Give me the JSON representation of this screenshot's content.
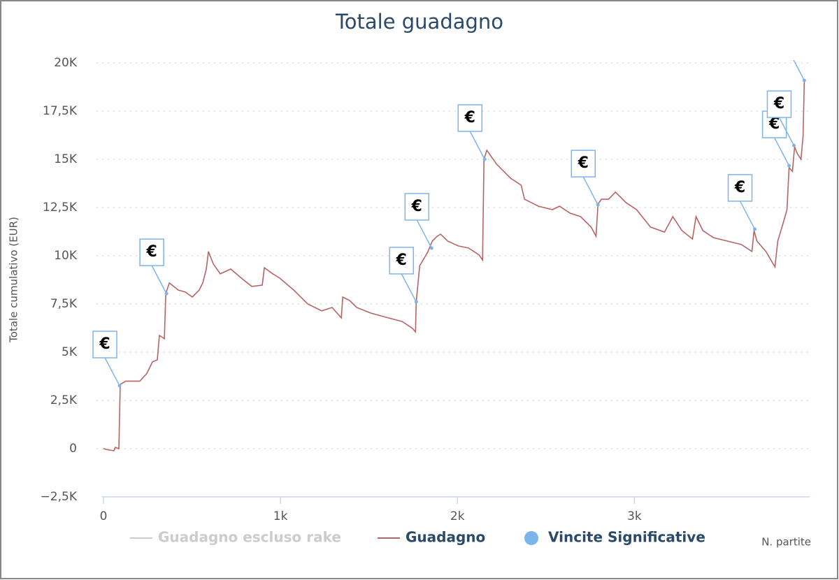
{
  "chart_data": {
    "type": "line",
    "title": "Totale guadagno",
    "xlabel": "N. partite",
    "ylabel": "Totale cumulativo (EUR)",
    "xlim": [
      0,
      3990
    ],
    "ylim": [
      -2500,
      20000
    ],
    "xticks": [
      0,
      {
        "value": 1000,
        "label": "1k"
      },
      {
        "value": 2000,
        "label": "2k"
      },
      {
        "value": 3000,
        "label": "3k"
      }
    ],
    "yticks": [
      {
        "value": -2500,
        "label": "−2,5K"
      },
      0,
      {
        "value": 2500,
        "label": "2,5K"
      },
      {
        "value": 5000,
        "label": "5K"
      },
      {
        "value": 7500,
        "label": "7,5K"
      },
      {
        "value": 10000,
        "label": "10K"
      },
      {
        "value": 12500,
        "label": "12,5K"
      },
      {
        "value": 15000,
        "label": "15K"
      },
      {
        "value": 17500,
        "label": "17,5K"
      },
      {
        "value": 20000,
        "label": "20K"
      }
    ],
    "grid": true,
    "series": [
      {
        "name": "Guadagno escluso rake",
        "color": "#cccccc",
        "visible": false
      },
      {
        "name": "Guadagno",
        "color": "#b86464",
        "type": "line",
        "x": [
          0,
          20,
          59,
          67,
          87,
          95,
          126,
          205,
          245,
          277,
          304,
          316,
          344,
          352,
          372,
          423,
          462,
          502,
          541,
          561,
          581,
          593,
          621,
          660,
          719,
          779,
          838,
          897,
          909,
          957,
          996,
          1075,
          1154,
          1233,
          1292,
          1344,
          1352,
          1391,
          1431,
          1510,
          1609,
          1688,
          1747,
          1763,
          1767,
          1787,
          1806,
          1834,
          1858,
          1885,
          1905,
          1945,
          2004,
          2063,
          2123,
          2142,
          2150,
          2166,
          2221,
          2300,
          2360,
          2379,
          2458,
          2537,
          2577,
          2636,
          2696,
          2755,
          2783,
          2794,
          2814,
          2854,
          2893,
          2953,
          3012,
          3091,
          3170,
          3217,
          3269,
          3328,
          3348,
          3387,
          3447,
          3526,
          3605,
          3664,
          3676,
          3692,
          3743,
          3794,
          3810,
          3842,
          3862,
          3874,
          3893,
          3905,
          3921,
          3941,
          3953,
          3960
        ],
        "values": [
          0,
          -50,
          -110,
          70,
          0,
          3330,
          3500,
          3500,
          3900,
          4500,
          4600,
          5870,
          5700,
          8040,
          8590,
          8220,
          8120,
          7860,
          8220,
          8590,
          9310,
          10220,
          9570,
          9060,
          9310,
          8840,
          8410,
          8480,
          9380,
          9060,
          8840,
          8220,
          7500,
          7140,
          7320,
          6780,
          7860,
          7680,
          7320,
          7030,
          6780,
          6590,
          6230,
          6050,
          7610,
          9490,
          9780,
          10220,
          10760,
          11010,
          11120,
          10760,
          10510,
          10400,
          10040,
          9780,
          15000,
          15470,
          14750,
          14020,
          13660,
          12930,
          12570,
          12390,
          12570,
          12210,
          12030,
          11490,
          11010,
          12680,
          12930,
          12930,
          13300,
          12750,
          12390,
          11490,
          11230,
          12030,
          11300,
          10870,
          12030,
          11300,
          10940,
          10760,
          10580,
          10220,
          11300,
          10760,
          10220,
          9420,
          10760,
          11740,
          12390,
          14570,
          14380,
          15650,
          15290,
          15000,
          16200,
          19090
        ]
      },
      {
        "name": "Vincite Significative",
        "color": "#7cb5ec",
        "type": "scatter",
        "marker_label": "€",
        "x": [
          91,
          356,
          1767,
          1854,
          2154,
          2794,
          3680,
          3874,
          3901,
          3960
        ],
        "values": [
          3260,
          8040,
          7610,
          10400,
          15000,
          12640,
          11380,
          14670,
          15720,
          19090
        ]
      }
    ]
  }
}
